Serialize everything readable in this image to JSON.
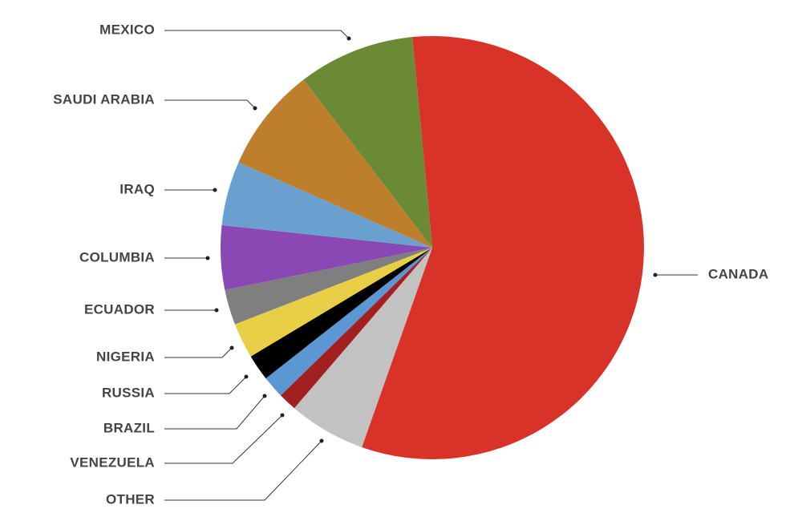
{
  "chart_data": {
    "type": "pie",
    "categories": [
      "CANADA",
      "OTHER",
      "VENEZUELA",
      "BRAZIL",
      "RUSSIA",
      "NIGERIA",
      "ECUADOR",
      "COLUMBIA",
      "IRAQ",
      "SAUDI ARABIA",
      "MEXICO"
    ],
    "values": [
      56.9,
      5.9,
      1.4,
      1.7,
      2.0,
      2.7,
      2.7,
      4.9,
      4.9,
      8.0,
      8.9
    ],
    "colors": [
      "#d93228",
      "#c2c2c2",
      "#a32020",
      "#5b97d2",
      "#000000",
      "#e8cf45",
      "#7f7f7f",
      "#8a48b4",
      "#6aa0cf",
      "#bd7f2c",
      "#6b8a35"
    ]
  }
}
